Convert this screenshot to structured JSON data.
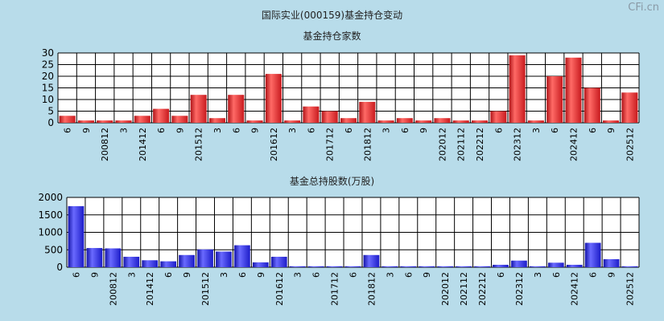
{
  "watermark": "CFi.cn",
  "title": "国际实业(000159)基金持仓变动",
  "colors": {
    "background": "#b8dcea",
    "red_bar": "#e0252a",
    "blue_bar": "#2323e0",
    "grid": "#000000"
  },
  "chart_data": [
    {
      "type": "bar",
      "title": "基金持仓家数",
      "categories": [
        "6",
        "9",
        "200812",
        "3",
        "201412",
        "6",
        "9",
        "201512",
        "3",
        "6",
        "9",
        "201612",
        "3",
        "6",
        "201712",
        "6",
        "201812",
        "3",
        "6",
        "9",
        "202012",
        "202112",
        "202212",
        "6",
        "202312",
        "3",
        "6",
        "202412",
        "6",
        "9",
        "202512"
      ],
      "values": [
        3,
        1,
        1,
        1,
        3,
        6,
        3,
        12,
        2,
        12,
        1,
        21,
        1,
        7,
        5,
        2,
        9,
        1,
        2,
        1,
        2,
        1,
        1,
        5,
        29,
        1,
        20,
        28,
        15,
        1,
        13
      ],
      "ylim": [
        0,
        30
      ],
      "yticks": [
        0,
        5,
        10,
        15,
        20,
        25,
        30
      ],
      "grid": true,
      "color": "red"
    },
    {
      "type": "bar",
      "title": "基金总持股数(万股)",
      "categories": [
        "6",
        "9",
        "200812",
        "3",
        "201412",
        "6",
        "9",
        "201512",
        "3",
        "6",
        "9",
        "201612",
        "3",
        "6",
        "201712",
        "6",
        "201812",
        "3",
        "6",
        "9",
        "202012",
        "202112",
        "202212",
        "6",
        "202312",
        "3",
        "6",
        "202412",
        "6",
        "9",
        "202512"
      ],
      "values": [
        1750,
        550,
        540,
        300,
        200,
        170,
        350,
        510,
        450,
        630,
        140,
        300,
        5,
        5,
        5,
        5,
        350,
        5,
        5,
        5,
        5,
        5,
        5,
        70,
        190,
        5,
        130,
        70,
        700,
        230,
        5
      ],
      "ylim": [
        0,
        2000
      ],
      "yticks": [
        0,
        500,
        1000,
        1500,
        2000
      ],
      "grid": true,
      "color": "blue"
    }
  ]
}
